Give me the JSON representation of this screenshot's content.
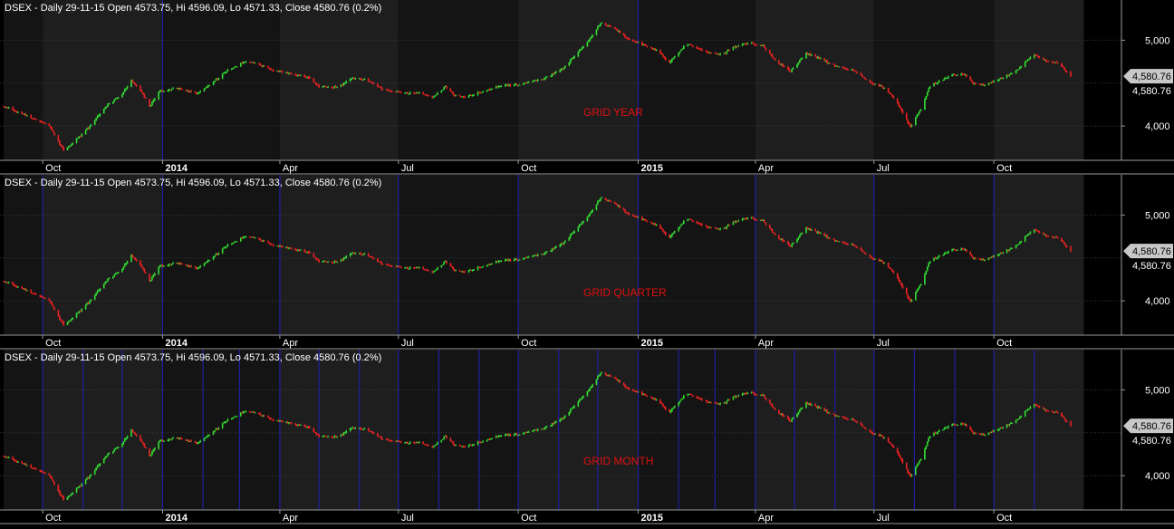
{
  "colors": {
    "background": "#000000",
    "plot_band_dark": "#141414",
    "plot_band_light": "#1e1e1e",
    "gridline": "#3a3a3a",
    "vertical_grid": "#1f1fa0",
    "up_candle": "#33dd33",
    "down_candle": "#ee2222",
    "axis_line": "#9a9a9a",
    "last_value_box": "#c8c8c8"
  },
  "chart_data": [
    {
      "type": "candlestick",
      "header": "DSEX - Daily 29-11-15 Open 4573.75, Hi 4596.09, Lo 4571.33, Close 4580.76 (0.2%)",
      "annotation": "GRID YEAR",
      "grid": "year",
      "y_ticks": [
        "5,000",
        "4,000"
      ],
      "x_ticks": [
        "Oct",
        "2014",
        "Apr",
        "Jul",
        "Oct",
        "2015",
        "Apr",
        "Jul",
        "Oct"
      ],
      "last_value": "4,580.76",
      "last_value_text": "4,580.76"
    },
    {
      "type": "candlestick",
      "header": "DSEX - Daily 29-11-15 Open 4573.75, Hi 4596.09, Lo 4571.33, Close 4580.76 (0.2%)",
      "annotation": "GRID QUARTER",
      "grid": "quarter",
      "y_ticks": [
        "5,000",
        "4,000"
      ],
      "x_ticks": [
        "Oct",
        "2014",
        "Apr",
        "Jul",
        "Oct",
        "2015",
        "Apr",
        "Jul",
        "Oct"
      ],
      "last_value": "4,580.76",
      "last_value_text": "4,580.76"
    },
    {
      "type": "candlestick",
      "header": "DSEX - Daily 29-11-15 Open 4573.75, Hi 4596.09, Lo 4571.33, Close 4580.76 (0.2%)",
      "annotation": "GRID MONTH",
      "grid": "month",
      "y_ticks": [
        "5,000",
        "4,000"
      ],
      "x_ticks": [
        "Oct",
        "2014",
        "Apr",
        "Jul",
        "Oct",
        "2015",
        "Apr",
        "Jul",
        "Oct"
      ],
      "last_value": "4,580.76",
      "last_value_text": "4,580.76"
    }
  ],
  "series": {
    "start": "2013-09-01",
    "end": "2015-11-29",
    "ylim": [
      3600,
      5300
    ],
    "x_tick_dates": [
      "2013-10-01",
      "2014-01-01",
      "2014-04-01",
      "2014-07-01",
      "2014-10-01",
      "2015-01-01",
      "2015-04-01",
      "2015-07-01",
      "2015-10-01"
    ],
    "y_tick_values": [
      5000,
      4000
    ],
    "close_path": [
      {
        "date": "2013-09-01",
        "close": 4230
      },
      {
        "date": "2013-09-22",
        "close": 4100
      },
      {
        "date": "2013-10-06",
        "close": 4000
      },
      {
        "date": "2013-10-17",
        "close": 3720
      },
      {
        "date": "2013-10-24",
        "close": 3800
      },
      {
        "date": "2013-11-05",
        "close": 3980
      },
      {
        "date": "2013-11-20",
        "close": 4250
      },
      {
        "date": "2013-11-30",
        "close": 4350
      },
      {
        "date": "2013-12-08",
        "close": 4530
      },
      {
        "date": "2013-12-15",
        "close": 4420
      },
      {
        "date": "2013-12-22",
        "close": 4230
      },
      {
        "date": "2013-12-29",
        "close": 4400
      },
      {
        "date": "2014-01-12",
        "close": 4440
      },
      {
        "date": "2014-01-27",
        "close": 4380
      },
      {
        "date": "2014-02-06",
        "close": 4480
      },
      {
        "date": "2014-02-20",
        "close": 4650
      },
      {
        "date": "2014-03-06",
        "close": 4760
      },
      {
        "date": "2014-03-13",
        "close": 4730
      },
      {
        "date": "2014-03-27",
        "close": 4650
      },
      {
        "date": "2014-04-10",
        "close": 4610
      },
      {
        "date": "2014-04-24",
        "close": 4560
      },
      {
        "date": "2014-05-01",
        "close": 4460
      },
      {
        "date": "2014-05-15",
        "close": 4450
      },
      {
        "date": "2014-05-27",
        "close": 4560
      },
      {
        "date": "2014-06-06",
        "close": 4540
      },
      {
        "date": "2014-06-13",
        "close": 4480
      },
      {
        "date": "2014-06-20",
        "close": 4420
      },
      {
        "date": "2014-06-30",
        "close": 4400
      },
      {
        "date": "2014-07-07",
        "close": 4380
      },
      {
        "date": "2014-07-17",
        "close": 4390
      },
      {
        "date": "2014-07-27",
        "close": 4330
      },
      {
        "date": "2014-08-06",
        "close": 4460
      },
      {
        "date": "2014-08-13",
        "close": 4360
      },
      {
        "date": "2014-08-20",
        "close": 4330
      },
      {
        "date": "2014-09-03",
        "close": 4400
      },
      {
        "date": "2014-09-17",
        "close": 4470
      },
      {
        "date": "2014-10-01",
        "close": 4480
      },
      {
        "date": "2014-10-08",
        "close": 4500
      },
      {
        "date": "2014-10-22",
        "close": 4560
      },
      {
        "date": "2014-11-05",
        "close": 4680
      },
      {
        "date": "2014-11-15",
        "close": 4850
      },
      {
        "date": "2014-11-26",
        "close": 5030
      },
      {
        "date": "2014-12-03",
        "close": 5200
      },
      {
        "date": "2014-12-13",
        "close": 5150
      },
      {
        "date": "2014-12-24",
        "close": 5020
      },
      {
        "date": "2015-01-07",
        "close": 4930
      },
      {
        "date": "2015-01-17",
        "close": 4870
      },
      {
        "date": "2015-01-24",
        "close": 4730
      },
      {
        "date": "2015-02-07",
        "close": 4960
      },
      {
        "date": "2015-02-21",
        "close": 4870
      },
      {
        "date": "2015-03-07",
        "close": 4830
      },
      {
        "date": "2015-03-14",
        "close": 4920
      },
      {
        "date": "2015-03-28",
        "close": 4970
      },
      {
        "date": "2015-04-07",
        "close": 4930
      },
      {
        "date": "2015-04-17",
        "close": 4760
      },
      {
        "date": "2015-04-28",
        "close": 4640
      },
      {
        "date": "2015-05-10",
        "close": 4850
      },
      {
        "date": "2015-05-20",
        "close": 4790
      },
      {
        "date": "2015-06-01",
        "close": 4700
      },
      {
        "date": "2015-06-15",
        "close": 4650
      },
      {
        "date": "2015-06-29",
        "close": 4500
      },
      {
        "date": "2015-07-06",
        "close": 4470
      },
      {
        "date": "2015-07-13",
        "close": 4390
      },
      {
        "date": "2015-07-20",
        "close": 4240
      },
      {
        "date": "2015-07-29",
        "close": 3990
      },
      {
        "date": "2015-08-06",
        "close": 4200
      },
      {
        "date": "2015-08-13",
        "close": 4470
      },
      {
        "date": "2015-08-23",
        "close": 4540
      },
      {
        "date": "2015-08-30",
        "close": 4600
      },
      {
        "date": "2015-09-08",
        "close": 4600
      },
      {
        "date": "2015-09-15",
        "close": 4500
      },
      {
        "date": "2015-09-24",
        "close": 4470
      },
      {
        "date": "2015-10-01",
        "close": 4520
      },
      {
        "date": "2015-10-08",
        "close": 4560
      },
      {
        "date": "2015-10-18",
        "close": 4650
      },
      {
        "date": "2015-10-28",
        "close": 4780
      },
      {
        "date": "2015-11-01",
        "close": 4830
      },
      {
        "date": "2015-11-10",
        "close": 4760
      },
      {
        "date": "2015-11-19",
        "close": 4740
      },
      {
        "date": "2015-11-29",
        "close": 4580
      }
    ]
  }
}
